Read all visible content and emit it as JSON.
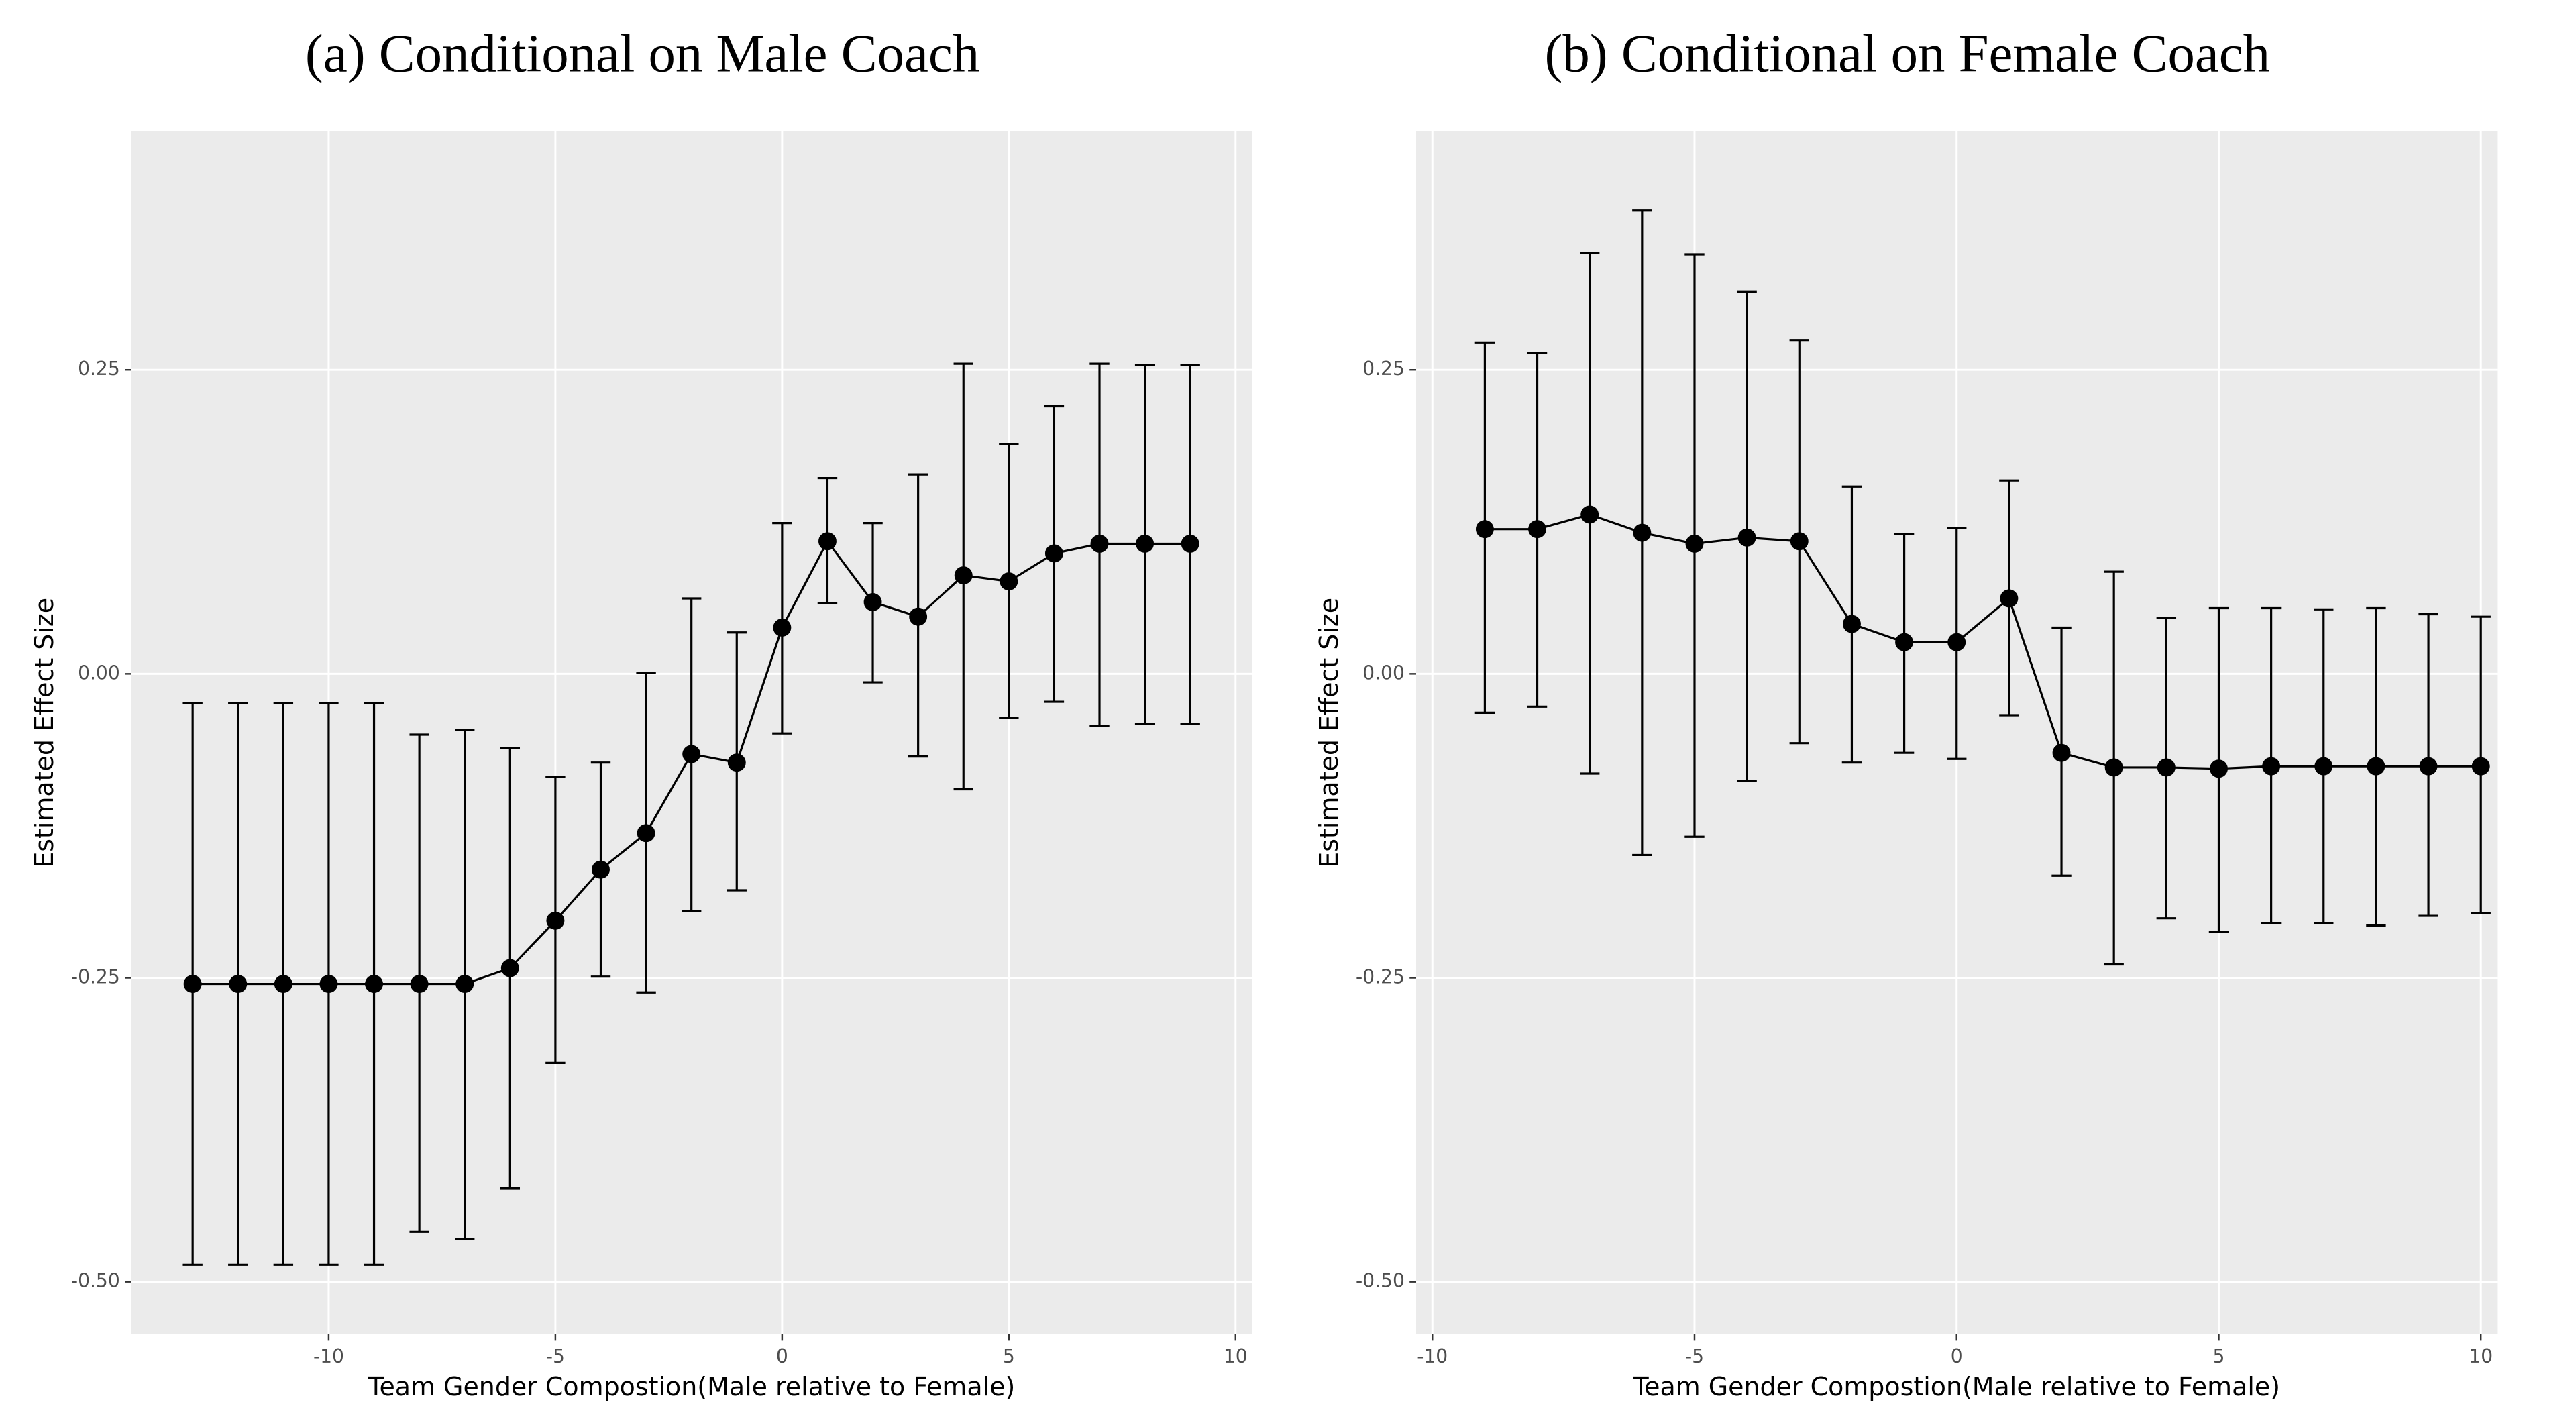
{
  "chart_data": [
    {
      "type": "errorbar",
      "title": "(a) Conditional on Male Coach",
      "xlabel": "Team Gender Compostion(Male relative to Female)",
      "ylabel": "Estimated Effect Size",
      "color": "#000000",
      "grid": true,
      "x": [
        -13,
        -12,
        -11,
        -10,
        -9,
        -8,
        -7,
        -6,
        -5,
        -4,
        -3,
        -2,
        -1,
        0,
        1,
        2,
        3,
        4,
        5,
        6,
        7,
        8,
        9
      ],
      "values": [
        -0.255,
        -0.255,
        -0.255,
        -0.255,
        -0.255,
        -0.255,
        -0.255,
        -0.242,
        -0.203,
        -0.161,
        -0.131,
        -0.066,
        -0.073,
        0.038,
        0.109,
        0.059,
        0.047,
        0.081,
        0.076,
        0.099,
        0.107,
        0.107,
        0.107
      ],
      "lower": [
        -0.486,
        -0.486,
        -0.486,
        -0.486,
        -0.486,
        -0.459,
        -0.465,
        -0.423,
        -0.32,
        -0.249,
        -0.262,
        -0.195,
        -0.178,
        -0.049,
        0.058,
        -0.007,
        -0.068,
        -0.095,
        -0.036,
        -0.023,
        -0.043,
        -0.041,
        -0.041
      ],
      "upper": [
        -0.024,
        -0.024,
        -0.024,
        -0.024,
        -0.024,
        -0.05,
        -0.046,
        -0.061,
        -0.085,
        -0.073,
        0.001,
        0.062,
        0.034,
        0.124,
        0.161,
        0.124,
        0.164,
        0.255,
        0.189,
        0.22,
        0.255,
        0.254,
        0.254
      ],
      "xlim": [
        -14.35,
        10.36
      ],
      "ylim": [
        -0.543,
        0.446
      ],
      "xticks": [
        -10,
        -5,
        0,
        5,
        10
      ],
      "yticks": [
        {
          "value": -0.5,
          "label": "-0.50"
        },
        -0.25,
        {
          "value": 0,
          "label": "0.00"
        },
        0.25
      ]
    },
    {
      "type": "errorbar",
      "title": "(b) Conditional on Female Coach",
      "xlabel": "Team Gender Compostion(Male relative to Female)",
      "ylabel": "Estimated Effect Size",
      "color": "#000000",
      "grid": true,
      "x": [
        -9,
        -8,
        -7,
        -6,
        -5,
        -4,
        -3,
        -2,
        -1,
        0,
        1,
        2,
        3,
        4,
        5,
        6,
        7,
        8,
        9,
        10
      ],
      "values": [
        0.119,
        0.119,
        0.131,
        0.116,
        0.107,
        0.112,
        0.109,
        0.041,
        0.026,
        0.026,
        0.062,
        -0.065,
        -0.077,
        -0.077,
        -0.078,
        -0.076,
        -0.076,
        -0.076,
        -0.076,
        -0.076
      ],
      "lower": [
        -0.032,
        -0.027,
        -0.082,
        -0.149,
        -0.134,
        -0.088,
        -0.057,
        -0.073,
        -0.065,
        -0.07,
        -0.034,
        -0.166,
        -0.239,
        -0.201,
        -0.212,
        -0.205,
        -0.205,
        -0.207,
        -0.199,
        -0.197
      ],
      "upper": [
        0.272,
        0.264,
        0.346,
        0.381,
        0.345,
        0.314,
        0.274,
        0.154,
        0.115,
        0.12,
        0.159,
        0.038,
        0.084,
        0.046,
        0.054,
        0.054,
        0.053,
        0.054,
        0.049,
        0.047
      ],
      "xlim": [
        -10.31,
        10.31
      ],
      "ylim": [
        -0.543,
        0.446
      ],
      "xticks": [
        -10,
        -5,
        0,
        5,
        10
      ],
      "yticks": [
        {
          "value": -0.5,
          "label": "-0.50"
        },
        -0.25,
        {
          "value": 0,
          "label": "0.00"
        },
        0.25
      ]
    }
  ]
}
